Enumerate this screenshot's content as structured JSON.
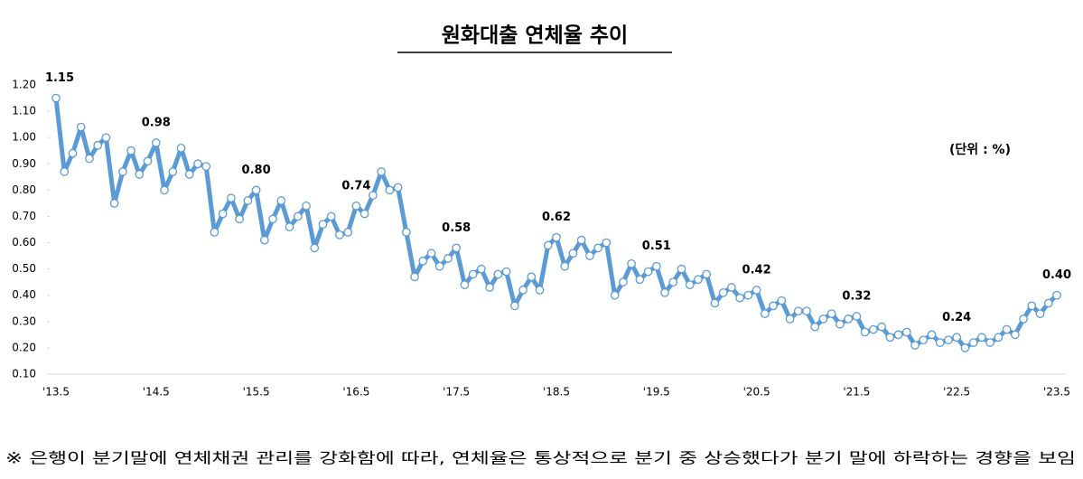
{
  "chart_data": {
    "type": "line",
    "title": "원화대출 연체율 추이",
    "unit_note": "(단위 : %)",
    "footnote": "※ 은행이 분기말에 연체채권 관리를 강화함에 따라, 연체율은 통상적으로 분기 중 상승했다가 분기 말에 하락하는 경향을 보임",
    "categories": [
      "'13.5",
      null,
      null,
      null,
      null,
      null,
      null,
      null,
      null,
      null,
      null,
      null,
      "'14.5",
      null,
      null,
      null,
      null,
      null,
      null,
      null,
      null,
      null,
      null,
      null,
      "'15.5",
      null,
      null,
      null,
      null,
      null,
      null,
      null,
      null,
      null,
      null,
      null,
      "'16.5",
      null,
      null,
      null,
      null,
      null,
      null,
      null,
      null,
      null,
      null,
      null,
      "'17.5",
      null,
      null,
      null,
      null,
      null,
      null,
      null,
      null,
      null,
      null,
      null,
      "'18.5",
      null,
      null,
      null,
      null,
      null,
      null,
      null,
      null,
      null,
      null,
      null,
      "'19.5",
      null,
      null,
      null,
      null,
      null,
      null,
      null,
      null,
      null,
      null,
      null,
      "'20.5",
      null,
      null,
      null,
      null,
      null,
      null,
      null,
      null,
      null,
      null,
      null,
      "'21.5",
      null,
      null,
      null,
      null,
      null,
      null,
      null,
      null,
      null,
      null,
      null,
      "'22.5",
      null,
      null,
      null,
      null,
      null,
      null,
      null,
      null,
      null,
      null,
      null,
      "'23.5"
    ],
    "values": [
      1.15,
      0.87,
      0.94,
      1.04,
      0.92,
      0.97,
      1.0,
      0.75,
      0.87,
      0.95,
      0.86,
      0.91,
      0.98,
      0.8,
      0.87,
      0.96,
      0.86,
      0.9,
      0.89,
      0.64,
      0.71,
      0.77,
      0.69,
      0.76,
      0.8,
      0.61,
      0.69,
      0.76,
      0.66,
      0.7,
      0.74,
      0.58,
      0.67,
      0.7,
      0.63,
      0.64,
      0.74,
      0.71,
      0.78,
      0.87,
      0.8,
      0.81,
      0.64,
      0.47,
      0.53,
      0.56,
      0.51,
      0.54,
      0.58,
      0.44,
      0.48,
      0.5,
      0.43,
      0.48,
      0.49,
      0.36,
      0.42,
      0.47,
      0.42,
      0.59,
      0.62,
      0.51,
      0.56,
      0.61,
      0.55,
      0.58,
      0.6,
      0.4,
      0.45,
      0.52,
      0.46,
      0.49,
      0.51,
      0.41,
      0.45,
      0.5,
      0.44,
      0.46,
      0.48,
      0.37,
      0.41,
      0.43,
      0.39,
      0.4,
      0.42,
      0.33,
      0.36,
      0.38,
      0.31,
      0.34,
      0.34,
      0.28,
      0.31,
      0.33,
      0.29,
      0.31,
      0.32,
      0.26,
      0.27,
      0.28,
      0.24,
      0.25,
      0.26,
      0.21,
      0.23,
      0.25,
      0.22,
      0.23,
      0.24,
      0.2,
      0.22,
      0.24,
      0.22,
      0.24,
      0.27,
      0.25,
      0.31,
      0.36,
      0.33,
      0.37,
      0.4
    ],
    "value_labels": [
      "1.15",
      null,
      null,
      null,
      null,
      null,
      null,
      null,
      null,
      null,
      null,
      null,
      "0.98",
      null,
      null,
      null,
      null,
      null,
      null,
      null,
      null,
      null,
      null,
      null,
      "0.80",
      null,
      null,
      null,
      null,
      null,
      null,
      null,
      null,
      null,
      null,
      null,
      "0.74",
      null,
      null,
      null,
      null,
      null,
      null,
      null,
      null,
      null,
      null,
      null,
      "0.58",
      null,
      null,
      null,
      null,
      null,
      null,
      null,
      null,
      null,
      null,
      null,
      "0.62",
      null,
      null,
      null,
      null,
      null,
      null,
      null,
      null,
      null,
      null,
      null,
      "0.51",
      null,
      null,
      null,
      null,
      null,
      null,
      null,
      null,
      null,
      null,
      null,
      "0.42",
      null,
      null,
      null,
      null,
      null,
      null,
      null,
      null,
      null,
      null,
      null,
      "0.32",
      null,
      null,
      null,
      null,
      null,
      null,
      null,
      null,
      null,
      null,
      null,
      "0.24",
      null,
      null,
      null,
      null,
      null,
      null,
      null,
      null,
      null,
      null,
      null,
      "0.40"
    ],
    "color": "#5b9bd5",
    "ylim": [
      0.1,
      1.2
    ],
    "yticks": [
      {
        "value": 0.1,
        "label": "0.10"
      },
      {
        "value": 0.2,
        "label": "0.20"
      },
      {
        "value": 0.3,
        "label": "0.30"
      },
      {
        "value": 0.4,
        "label": "0.40"
      },
      {
        "value": 0.5,
        "label": "0.50"
      },
      {
        "value": 0.6,
        "label": "0.60"
      },
      {
        "value": 0.7,
        "label": "0.70"
      },
      {
        "value": 0.8,
        "label": "0.80"
      },
      {
        "value": 0.9,
        "label": "0.90"
      },
      {
        "value": 1.0,
        "label": "1.00"
      },
      {
        "value": 1.1,
        "label": "1.10"
      },
      {
        "value": 1.2,
        "label": "1.20"
      }
    ],
    "grid": false
  }
}
